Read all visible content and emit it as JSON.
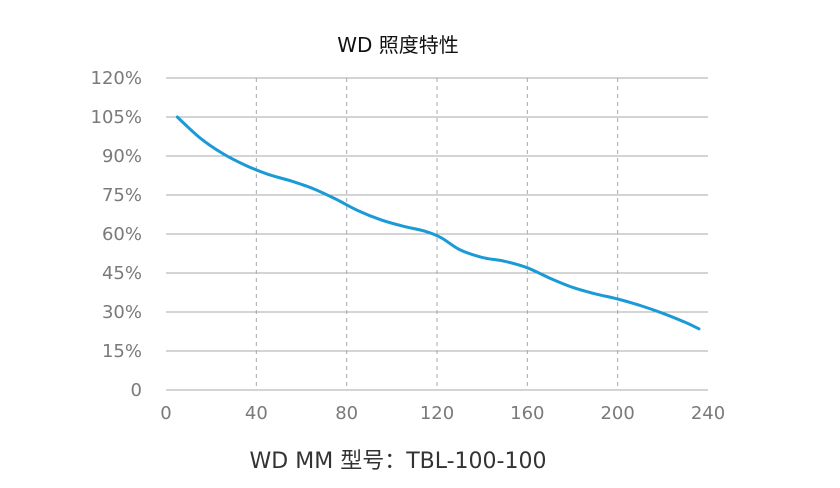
{
  "chart_data": {
    "type": "line",
    "title": "WD 照度特性",
    "xlabel": "WD MM 型号：TBL-100-100",
    "ylabel": "",
    "xlim": [
      0,
      240
    ],
    "ylim": [
      0,
      120
    ],
    "xticks": [
      "0",
      "40",
      "80",
      "120",
      "160",
      "200",
      "240"
    ],
    "yticks": [
      "0",
      "15%",
      "30%",
      "45%",
      "60%",
      "75%",
      "90%",
      "105%",
      "120%"
    ],
    "ytick_values": [
      0,
      15,
      30,
      45,
      60,
      75,
      90,
      105,
      120
    ],
    "xtick_values": [
      0,
      40,
      80,
      120,
      160,
      200,
      240
    ],
    "grid": {
      "horizontal": "solid",
      "vertical": "dashed"
    },
    "series": [
      {
        "color": "#1a9ad6",
        "x": [
          5,
          15,
          25,
          35,
          45,
          55,
          65,
          75,
          85,
          95,
          105,
          115,
          122,
          130,
          140,
          150,
          160,
          170,
          180,
          190,
          200,
          210,
          220,
          230,
          236
        ],
        "y": [
          105,
          97,
          91,
          86.5,
          83,
          80.5,
          77.5,
          73.5,
          69,
          65.5,
          63,
          61,
          58.5,
          54,
          51,
          49.5,
          47,
          43,
          39.5,
          37,
          35,
          32.5,
          29.5,
          26,
          23.5
        ]
      }
    ]
  }
}
